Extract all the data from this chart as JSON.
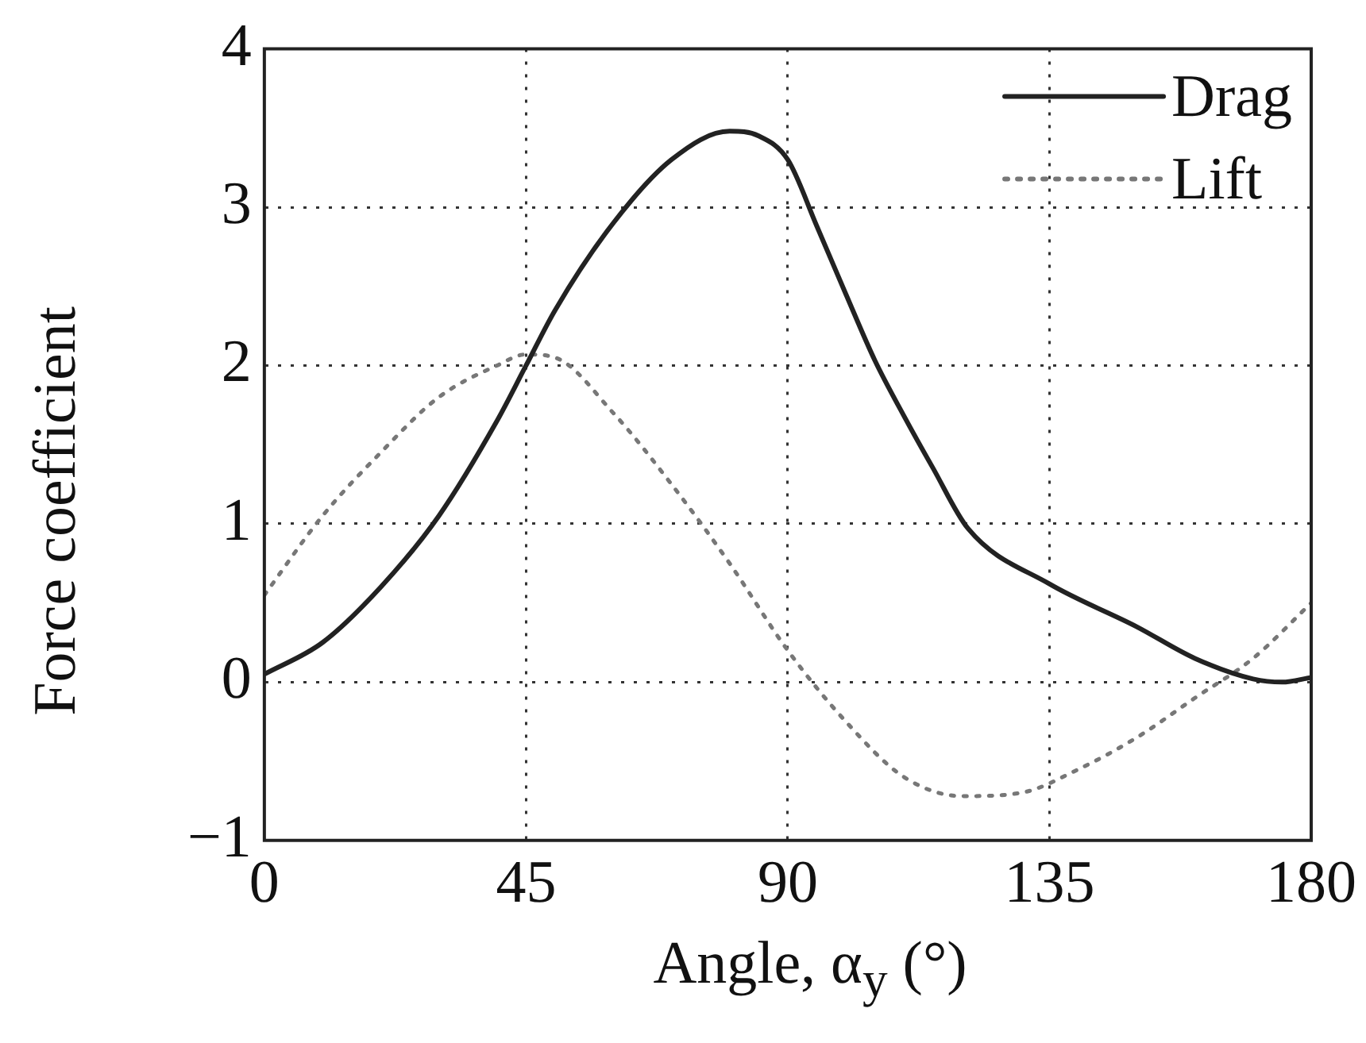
{
  "chart_data": {
    "type": "line",
    "xlabel": "Angle, α$_{y}$ (°)",
    "ylabel": "Force coefficient",
    "xlim": [
      0,
      180
    ],
    "xticks": [
      0,
      45,
      90,
      135,
      180
    ],
    "ylim": [
      -1,
      4
    ],
    "yticks": [
      {
        "value": -1,
        "label": "−1"
      },
      0,
      1,
      2,
      3,
      4
    ],
    "grid": true,
    "legend": "top right",
    "marker": "none",
    "series": [
      {
        "name": "Drag",
        "color": "#222222",
        "line_style": "solid",
        "x": [
          0,
          10,
          20,
          30,
          40,
          45,
          50,
          60,
          70,
          80,
          85,
          90,
          95,
          100,
          105,
          110,
          115,
          121,
          135,
          150,
          160,
          170,
          175,
          180
        ],
        "values": [
          0.05,
          0.25,
          0.6,
          1.05,
          1.65,
          2.0,
          2.35,
          2.9,
          3.3,
          3.48,
          3.45,
          3.3,
          2.88,
          2.45,
          2.03,
          1.68,
          1.35,
          0.97,
          0.62,
          0.35,
          0.15,
          0.02,
          0.0,
          0.03
        ]
      },
      {
        "name": "Lift",
        "color": "#777777",
        "line_style": "dotted",
        "x": [
          0,
          10,
          20,
          30,
          40,
          45,
          50,
          60,
          70,
          80,
          90,
          100,
          110,
          120,
          130,
          140,
          150,
          160,
          170,
          180
        ],
        "values": [
          0.55,
          1.05,
          1.45,
          1.8,
          2.0,
          2.07,
          2.05,
          1.7,
          1.25,
          0.75,
          0.2,
          -0.25,
          -0.6,
          -0.72,
          -0.7,
          -0.55,
          -0.35,
          -0.1,
          0.15,
          0.5
        ]
      }
    ]
  }
}
